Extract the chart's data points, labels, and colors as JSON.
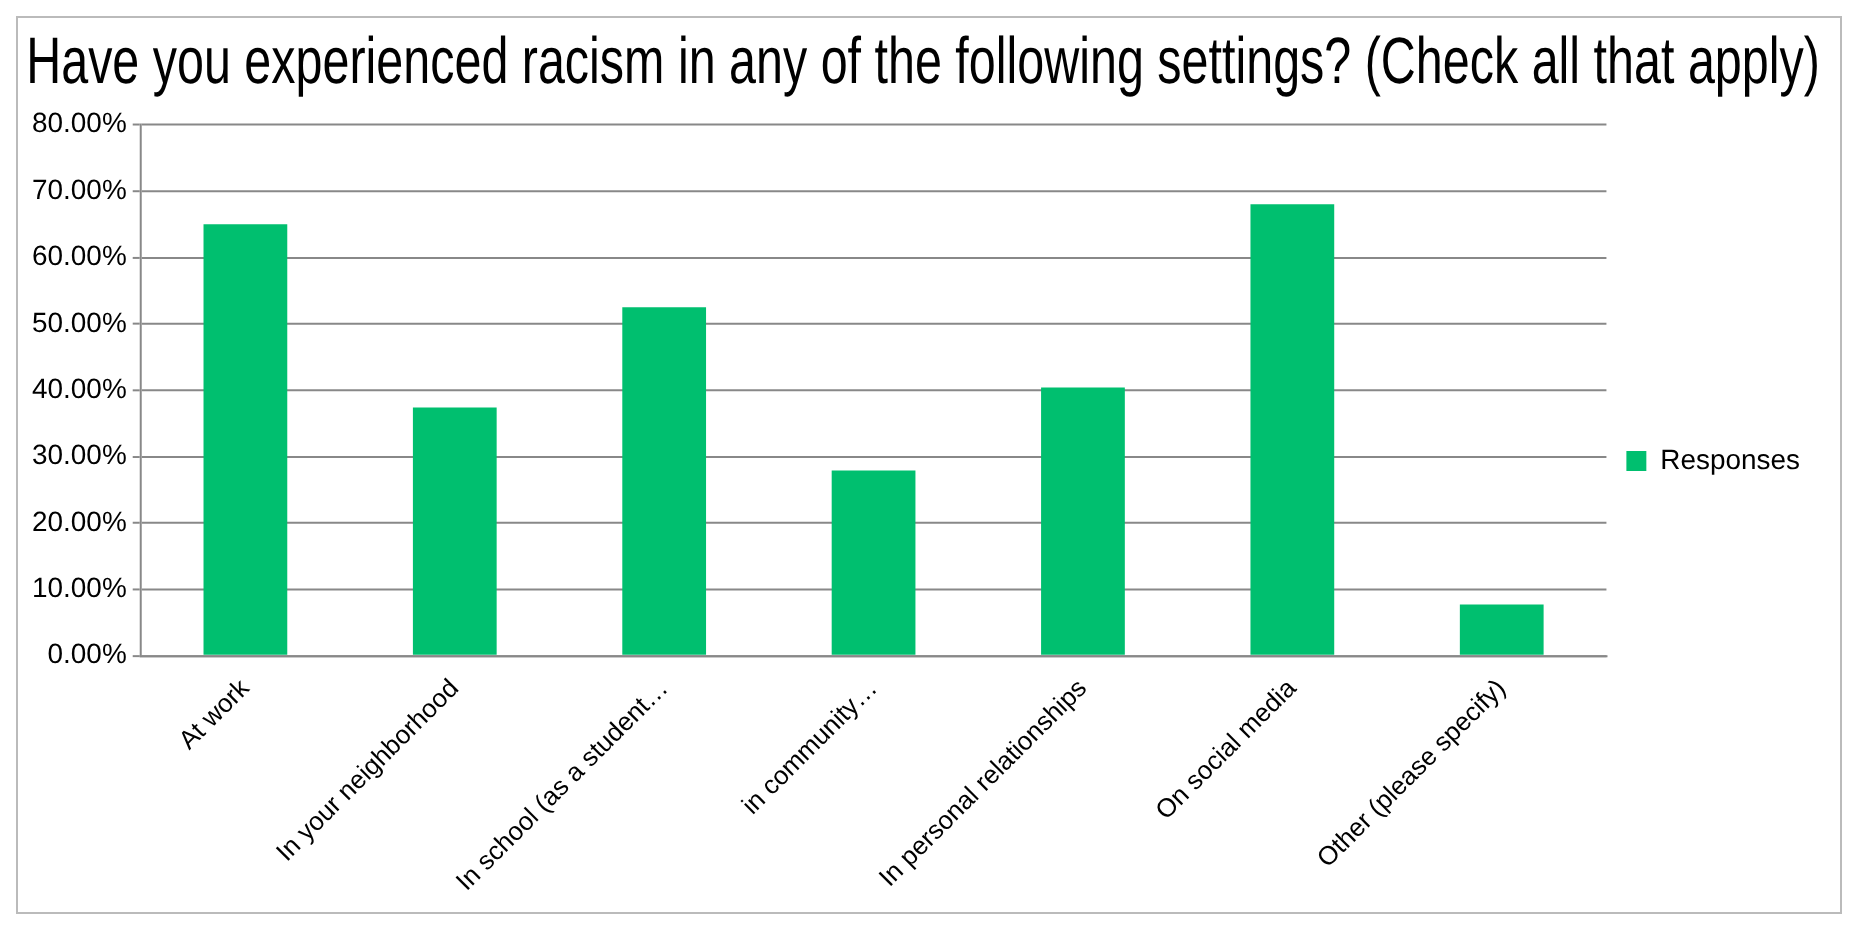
{
  "chart_data": {
    "type": "bar",
    "title": "Have you experienced racism in any of the following settings? (Check all that apply)",
    "categories": [
      "At work",
      "In your neighborhood",
      "In school (as a student…",
      "in community…",
      "In personal relationships",
      "On social media",
      "Other (please specify)"
    ],
    "series": [
      {
        "name": "Responses",
        "color": "#00bf6f",
        "values": [
          65.0,
          37.4,
          52.5,
          27.9,
          40.4,
          68.0,
          7.7
        ]
      }
    ],
    "ylim": [
      0,
      80
    ],
    "yticks": [
      {
        "value": 0,
        "label": "0.00%"
      },
      {
        "value": 10,
        "label": "10.00%"
      },
      {
        "value": 20,
        "label": "20.00%"
      },
      {
        "value": 30,
        "label": "30.00%"
      },
      {
        "value": 40,
        "label": "40.00%"
      },
      {
        "value": 50,
        "label": "50.00%"
      },
      {
        "value": 60,
        "label": "60.00%"
      },
      {
        "value": 70,
        "label": "70.00%"
      },
      {
        "value": 80,
        "label": "80.00%"
      }
    ],
    "grid": "y",
    "legend": "right"
  }
}
